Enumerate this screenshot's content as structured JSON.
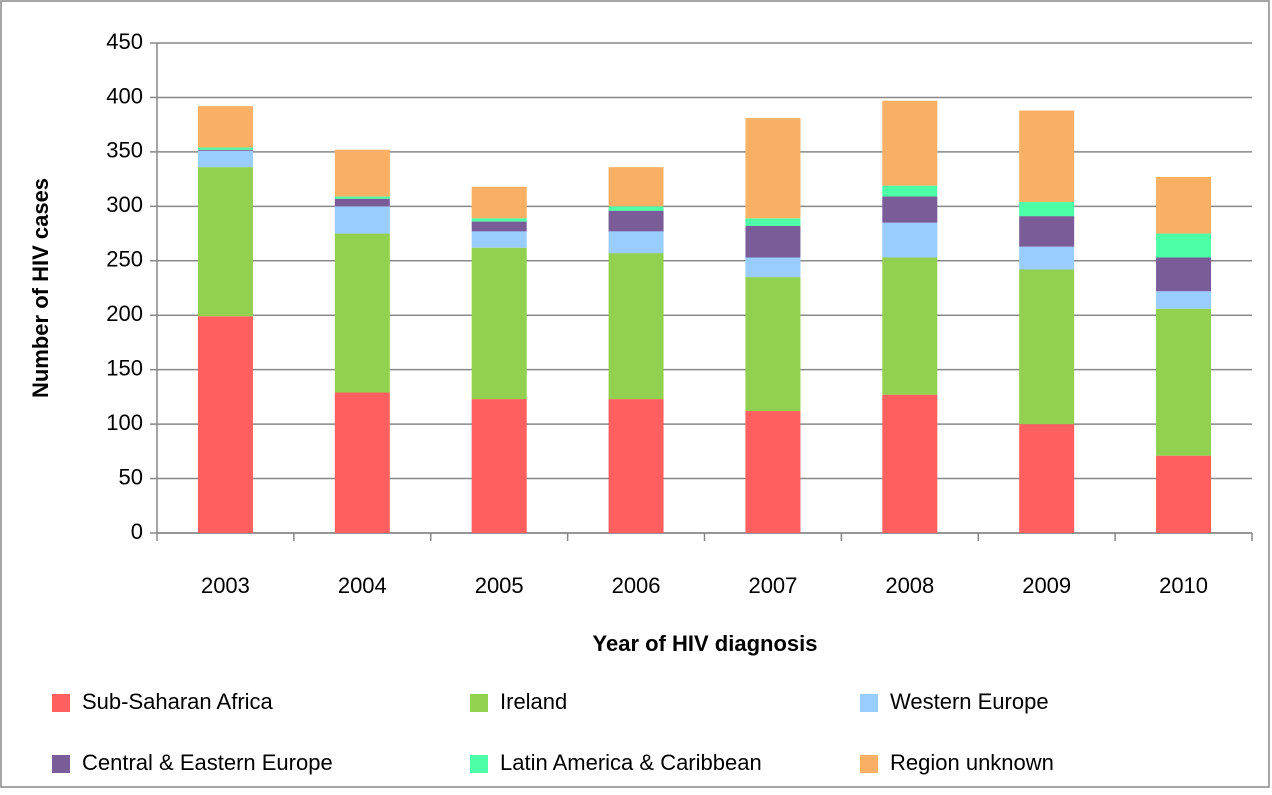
{
  "chart_data": {
    "type": "stacked_bar",
    "categories": [
      "2003",
      "2004",
      "2005",
      "2006",
      "2007",
      "2008",
      "2009",
      "2010"
    ],
    "series": [
      {
        "name": "Sub-Saharan Africa",
        "color": "#ff5f5f",
        "values": [
          199,
          129,
          123,
          123,
          112,
          127,
          100,
          71
        ]
      },
      {
        "name": "Ireland",
        "color": "#92d050",
        "values": [
          137,
          146,
          139,
          134,
          123,
          126,
          142,
          135
        ]
      },
      {
        "name": "Western Europe",
        "color": "#99ccff",
        "values": [
          15,
          25,
          15,
          20,
          18,
          32,
          21,
          16
        ]
      },
      {
        "name": "Central & Eastern Europe",
        "color": "#7a5c99",
        "values": [
          1,
          7,
          9,
          19,
          29,
          24,
          28,
          31
        ]
      },
      {
        "name": "Latin America & Caribbean",
        "color": "#4dffa6",
        "values": [
          2,
          2,
          3,
          4,
          7,
          10,
          13,
          22
        ]
      },
      {
        "name": "Region unknown",
        "color": "#f9b064",
        "values": [
          38,
          43,
          29,
          36,
          92,
          78,
          84,
          52
        ]
      }
    ],
    "xlabel": "Year of HIV diagnosis",
    "ylabel": "Number of HIV cases",
    "ylim": [
      0,
      450
    ],
    "yticks": [
      0,
      50,
      100,
      150,
      200,
      250,
      300,
      350,
      400,
      450
    ],
    "grid": true,
    "legend": "bottom"
  }
}
